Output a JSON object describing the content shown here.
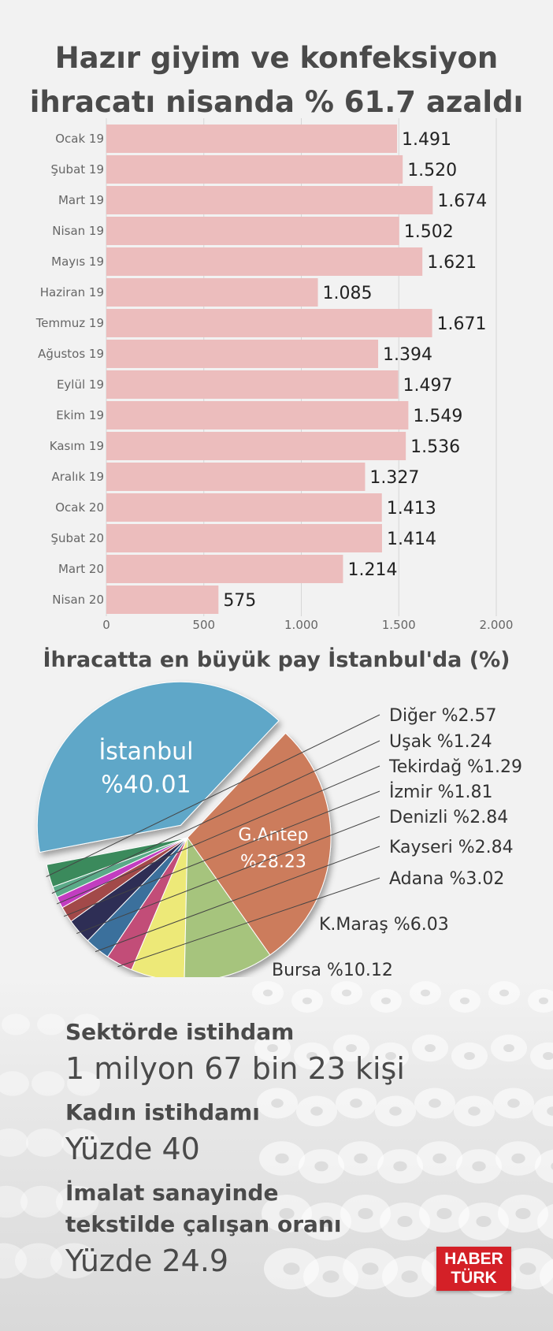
{
  "title_line1": "Hazır giyim ve konfeksiyon",
  "title_line2": "ihracatı nisanda % 61.7 azaldı",
  "chart_data": [
    {
      "type": "bar",
      "orientation": "horizontal",
      "categories": [
        "Ocak 19",
        "Şubat 19",
        "Mart 19",
        "Nisan 19",
        "Mayıs 19",
        "Haziran 19",
        "Temmuz 19",
        "Ağustos 19",
        "Eylül 19",
        "Ekim 19",
        "Kasım 19",
        "Aralık 19",
        "Ocak 20",
        "Şubat 20",
        "Mart 20",
        "Nisan 20"
      ],
      "values": [
        1491,
        1520,
        1674,
        1502,
        1621,
        1085,
        1671,
        1394,
        1497,
        1549,
        1536,
        1327,
        1413,
        1414,
        1214,
        575
      ],
      "value_labels": [
        "1.491",
        "1.520",
        "1.674",
        "1.502",
        "1.621",
        "1.085",
        "1.671",
        "1.394",
        "1.497",
        "1.549",
        "1.536",
        "1.327",
        "1.413",
        "1.414",
        "1.214",
        "575"
      ],
      "xlim": [
        0,
        2000
      ],
      "x_ticks": [
        0,
        500,
        1000,
        1500,
        2000
      ],
      "x_tick_labels": [
        "0",
        "500",
        "1.000",
        "1.500",
        "2.000"
      ],
      "bar_color": "#ecbdbd",
      "grid": true
    },
    {
      "type": "pie",
      "title": "İhracatta en büyük pay İstanbul'da (%)",
      "slices": [
        {
          "name": "İstanbul",
          "value": 40.01,
          "label_line1": "İstanbul",
          "label_line2": "%40.01",
          "color": "#5fa7c8",
          "exploded": true
        },
        {
          "name": "Diğer",
          "value": 2.57,
          "label": "Diğer %2.57",
          "color": "#3a8a5c"
        },
        {
          "name": "Uşak",
          "value": 1.24,
          "label": "Uşak %1.24",
          "color": "#5aaa88"
        },
        {
          "name": "Tekirdağ",
          "value": 1.29,
          "label": "Tekirdağ %1.29",
          "color": "#c23ec0"
        },
        {
          "name": "İzmir",
          "value": 1.81,
          "label": "İzmir %1.81",
          "color": "#a24a4a"
        },
        {
          "name": "Denizli",
          "value": 2.84,
          "label": "Denizli %2.84",
          "color": "#2e2e55"
        },
        {
          "name": "Kayseri",
          "value": 2.84,
          "label": "Kayseri %2.84",
          "color": "#3a6f9c"
        },
        {
          "name": "Adana",
          "value": 3.02,
          "label": "Adana %3.02",
          "color": "#c24e78"
        },
        {
          "name": "K.Maraş",
          "value": 6.03,
          "label": "K.Maraş %6.03",
          "color": "#ede978"
        },
        {
          "name": "Bursa",
          "value": 10.12,
          "label": "Bursa %10.12",
          "color": "#a6c47d"
        },
        {
          "name": "G.Antep",
          "value": 28.23,
          "label_line1": "G.Antep",
          "label_line2": "%28.23",
          "color": "#cc7b5b"
        }
      ]
    }
  ],
  "stats": [
    {
      "label": "Sektörde istihdam",
      "value": "1 milyon 67 bin 23 kişi"
    },
    {
      "label": "Kadın istihdamı",
      "value": "Yüzde 40"
    },
    {
      "label_line1": "İmalat sanayinde",
      "label_line2": "tekstilde çalışan oranı",
      "value": "Yüzde 24.9"
    }
  ],
  "logo": {
    "line1": "HABER",
    "line2": "TÜRK"
  }
}
